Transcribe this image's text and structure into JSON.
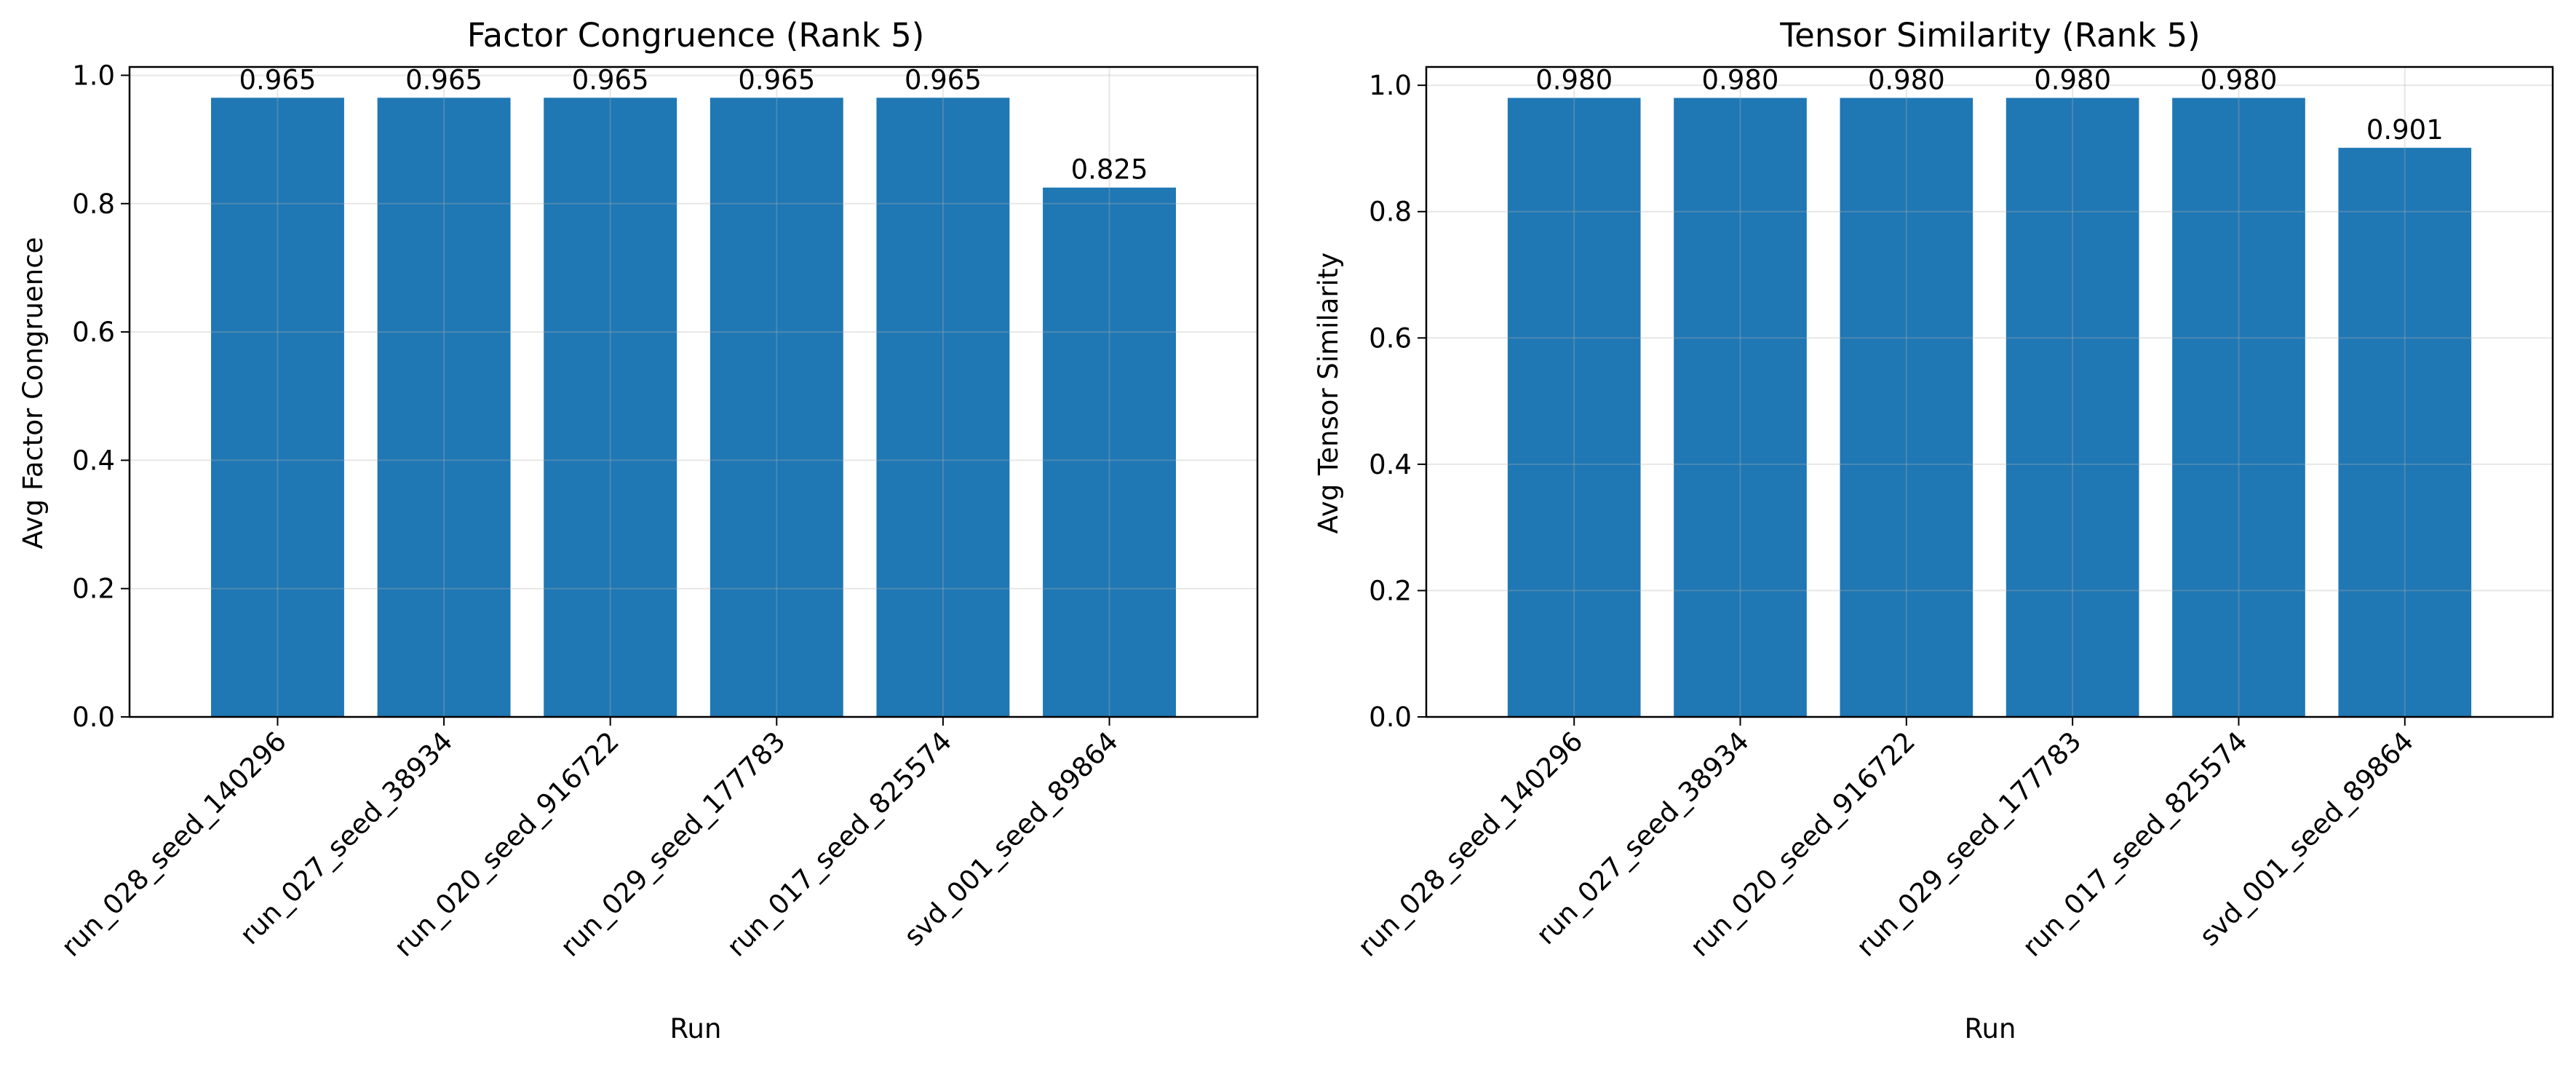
{
  "chart_data": [
    {
      "type": "bar",
      "title": "Factor Congruence (Rank 5)",
      "xlabel": "Run",
      "ylabel": "Avg Factor Congruence",
      "categories": [
        "run_028_seed_140296",
        "run_027_seed_38934",
        "run_020_seed_916722",
        "run_029_seed_177783",
        "run_017_seed_825574",
        "svd_001_seed_89864"
      ],
      "values": [
        0.965,
        0.965,
        0.965,
        0.965,
        0.965,
        0.825
      ],
      "value_labels": [
        "0.965",
        "0.965",
        "0.965",
        "0.965",
        "0.965",
        "0.825"
      ],
      "ylim": [
        0,
        1.013
      ],
      "yticks": [
        "0.0",
        "0.2",
        "0.4",
        "0.6",
        "0.8",
        "1.0"
      ],
      "grid": true,
      "bar_color": "#1f77b4"
    },
    {
      "type": "bar",
      "title": "Tensor Similarity (Rank 5)",
      "xlabel": "Run",
      "ylabel": "Avg Tensor Similarity",
      "categories": [
        "run_028_seed_140296",
        "run_027_seed_38934",
        "run_020_seed_916722",
        "run_029_seed_177783",
        "run_017_seed_825574",
        "svd_001_seed_89864"
      ],
      "values": [
        0.98,
        0.98,
        0.98,
        0.98,
        0.98,
        0.901
      ],
      "value_labels": [
        "0.980",
        "0.980",
        "0.980",
        "0.980",
        "0.980",
        "0.901"
      ],
      "ylim": [
        0,
        1.029
      ],
      "yticks": [
        "0.0",
        "0.2",
        "0.4",
        "0.6",
        "0.8",
        "1.0"
      ],
      "grid": true,
      "bar_color": "#1f77b4"
    }
  ]
}
